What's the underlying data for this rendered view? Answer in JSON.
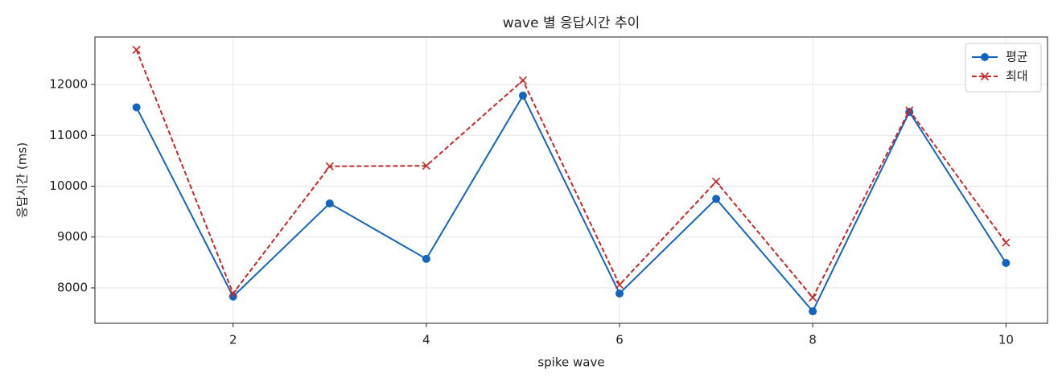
{
  "chart_data": {
    "type": "line",
    "title": "wave 별 응답시간 추이",
    "xlabel": "spike wave",
    "ylabel": "응답시간 (ms)",
    "x": [
      1,
      2,
      3,
      4,
      5,
      6,
      7,
      8,
      9,
      10
    ],
    "series": [
      {
        "name": "평균",
        "color": "#1565c0",
        "marker": "circle",
        "dash": false,
        "values": [
          11550,
          7830,
          9660,
          8570,
          11780,
          7890,
          9750,
          7540,
          11460,
          8490
        ]
      },
      {
        "name": "최대",
        "color": "#c62828",
        "marker": "x",
        "dash": true,
        "values": [
          12680,
          7890,
          10390,
          10400,
          12080,
          8060,
          10090,
          7810,
          11490,
          8890
        ]
      }
    ],
    "xlim": [
      0.57,
      10.43
    ],
    "xticks": [
      2,
      4,
      6,
      8,
      10
    ],
    "ylim": [
      7304,
      12933
    ],
    "yticks": [
      8000,
      9000,
      10000,
      11000,
      12000
    ],
    "grid": true,
    "legend": "upper-right"
  }
}
